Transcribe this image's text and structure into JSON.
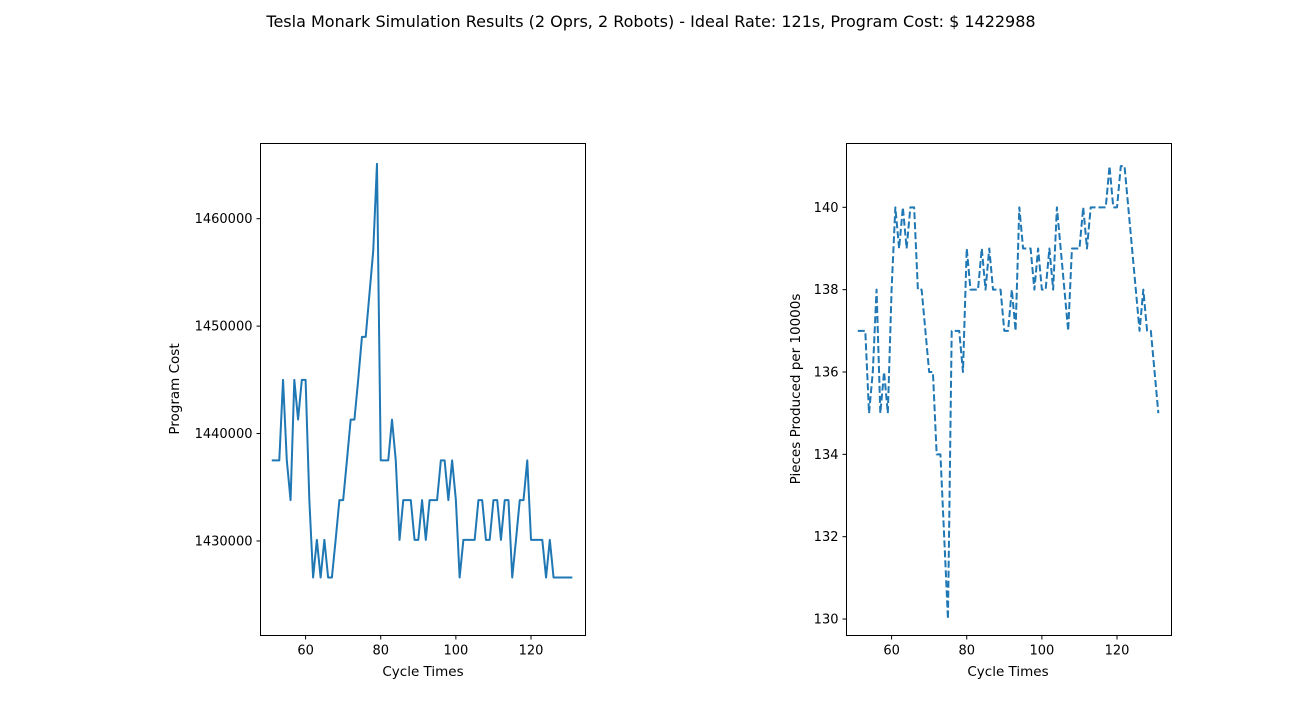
{
  "figure": {
    "suptitle": "Tesla Monark Simulation Results (2 Oprs, 2 Robots) - Ideal Rate:  121s, Program Cost: $ 1422988"
  },
  "colors": {
    "series": "#1f77b4",
    "axes": "#000000",
    "background": "#ffffff"
  },
  "chart_data": [
    {
      "type": "line",
      "title": "",
      "xlabel": "Cycle Times",
      "ylabel": "Program Cost",
      "xlim": [
        48,
        134.5
      ],
      "ylim": [
        1421200,
        1467000
      ],
      "xticks": [
        60,
        80,
        100,
        120
      ],
      "yticks": [
        1430000,
        1440000,
        1450000,
        1460000
      ],
      "line_style": "solid",
      "grid": false,
      "series": [
        {
          "x": [
            51,
            52,
            53,
            54,
            55,
            56,
            57,
            58,
            59,
            60,
            61,
            62,
            63,
            64,
            65,
            66,
            67,
            68,
            69,
            70,
            71,
            72,
            73,
            74,
            75,
            76,
            77,
            78,
            79,
            80,
            81,
            82,
            83,
            84,
            85,
            86,
            87,
            88,
            89,
            90,
            91,
            92,
            93,
            94,
            95,
            96,
            97,
            98,
            99,
            100,
            101,
            102,
            103,
            104,
            105,
            106,
            107,
            108,
            109,
            110,
            111,
            112,
            113,
            114,
            115,
            116,
            117,
            118,
            119,
            120,
            121,
            122,
            123,
            124,
            125,
            126,
            127,
            128,
            129,
            130,
            131
          ],
          "values": [
            1437500,
            1437500,
            1437500,
            1445000,
            1437500,
            1433800,
            1445000,
            1441300,
            1445000,
            1445000,
            1433800,
            1426600,
            1430100,
            1426600,
            1430100,
            1426600,
            1426600,
            1430100,
            1433800,
            1433800,
            1437500,
            1441300,
            1441300,
            1445000,
            1449000,
            1449000,
            1453000,
            1457000,
            1465100,
            1437500,
            1437500,
            1437500,
            1441300,
            1437500,
            1430100,
            1433800,
            1433800,
            1433800,
            1430100,
            1430100,
            1433800,
            1430100,
            1433800,
            1433800,
            1433800,
            1437500,
            1437500,
            1433800,
            1437500,
            1433800,
            1426600,
            1430100,
            1430100,
            1430100,
            1430100,
            1433800,
            1433800,
            1430100,
            1430100,
            1433800,
            1433800,
            1430100,
            1433800,
            1433800,
            1426600,
            1430100,
            1433800,
            1433800,
            1437500,
            1430100,
            1430100,
            1430100,
            1430100,
            1426600,
            1430100,
            1426600,
            1426600,
            1426600,
            1426600,
            1426600,
            1426600
          ]
        }
      ]
    },
    {
      "type": "line",
      "title": "",
      "xlabel": "Cycle Times",
      "ylabel": "Pieces Produced per 10000s",
      "xlim": [
        48,
        134.5
      ],
      "ylim": [
        129.6,
        141.55
      ],
      "xticks": [
        60,
        80,
        100,
        120
      ],
      "yticks": [
        130,
        132,
        134,
        136,
        138,
        140
      ],
      "line_style": "dashed",
      "grid": false,
      "series": [
        {
          "x": [
            51,
            52,
            53,
            54,
            55,
            56,
            57,
            58,
            59,
            60,
            61,
            62,
            63,
            64,
            65,
            66,
            67,
            68,
            69,
            70,
            71,
            72,
            73,
            74,
            75,
            76,
            77,
            78,
            79,
            80,
            81,
            82,
            83,
            84,
            85,
            86,
            87,
            88,
            89,
            90,
            91,
            92,
            93,
            94,
            95,
            96,
            97,
            98,
            99,
            100,
            101,
            102,
            103,
            104,
            105,
            106,
            107,
            108,
            109,
            110,
            111,
            112,
            113,
            114,
            115,
            116,
            117,
            118,
            119,
            120,
            121,
            122,
            123,
            124,
            125,
            126,
            127,
            128,
            129,
            130,
            131
          ],
          "values": [
            137,
            137,
            137,
            135,
            136,
            138,
            135,
            136,
            135,
            138,
            140,
            139,
            140,
            139,
            140,
            140,
            138,
            138,
            137,
            136,
            136,
            134,
            134,
            132,
            130,
            137,
            137,
            137,
            136,
            139,
            138,
            138,
            138,
            139,
            138,
            139,
            138,
            138,
            138,
            137,
            137,
            138,
            137,
            140,
            139,
            139,
            139,
            138,
            139,
            138,
            138,
            139,
            138,
            140,
            139,
            138,
            137,
            139,
            139,
            139,
            140,
            139,
            140,
            140,
            140,
            140,
            140,
            141,
            140,
            140,
            141,
            141,
            140,
            139,
            138,
            137,
            138,
            137,
            137,
            136,
            135
          ]
        }
      ]
    }
  ]
}
